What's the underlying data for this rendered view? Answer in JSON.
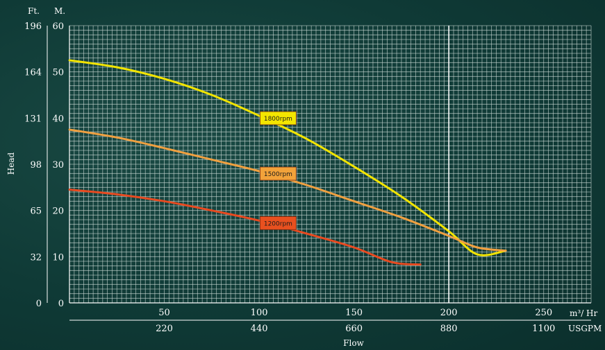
{
  "chart_data": {
    "type": "line",
    "xlabel": "Flow",
    "ylabel": "Head",
    "unit_left_outer": "Ft.",
    "unit_left_inner": "M.",
    "unit_bottom_primary": "m³/ Hr",
    "unit_bottom_secondary": "USGPM",
    "xlim": [
      0,
      275
    ],
    "ylim": [
      0,
      60
    ],
    "x_ticks": [
      50,
      100,
      150,
      200,
      250
    ],
    "x_ticks_usgpm": [
      "220",
      "440",
      "660",
      "880",
      "1100"
    ],
    "y_ticks_m": [
      "0",
      "10",
      "20",
      "30",
      "40",
      "50",
      "60"
    ],
    "y_ticks_ft": [
      "0",
      "32",
      "65",
      "98",
      "131",
      "164",
      "196"
    ],
    "grid": true,
    "series": [
      {
        "name": "1800rpm",
        "color": "#f2e400",
        "label_bg": "#f3e600",
        "x": [
          0,
          25,
          50,
          75,
          100,
          125,
          150,
          175,
          200,
          215,
          230
        ],
        "y": [
          52.5,
          51.0,
          48.5,
          45.0,
          40.5,
          35.5,
          29.5,
          23.0,
          15.5,
          10.5,
          11.3
        ]
      },
      {
        "name": "1500rpm",
        "color": "#f0a040",
        "label_bg": "#f2a23a",
        "x": [
          0,
          25,
          50,
          75,
          100,
          125,
          150,
          175,
          200,
          215,
          230
        ],
        "y": [
          37.5,
          35.8,
          33.5,
          31.0,
          28.5,
          25.5,
          22.0,
          18.5,
          14.5,
          12.0,
          11.3
        ]
      },
      {
        "name": "1200rpm",
        "color": "#e84a20",
        "label_bg": "#e8501f",
        "x": [
          0,
          25,
          50,
          75,
          100,
          125,
          150,
          170,
          185
        ],
        "y": [
          24.5,
          23.5,
          22.0,
          20.0,
          17.8,
          15.0,
          12.0,
          8.8,
          8.3
        ]
      }
    ]
  }
}
